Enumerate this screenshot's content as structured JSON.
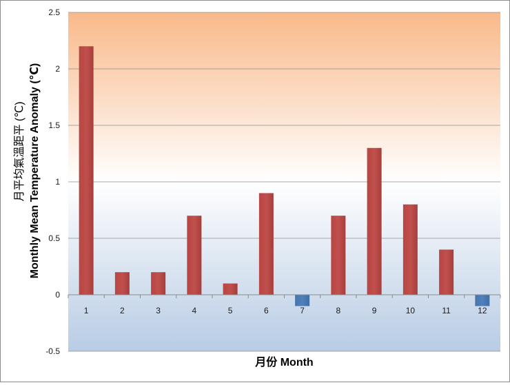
{
  "chart_data": {
    "type": "bar",
    "categories": [
      "1",
      "2",
      "3",
      "4",
      "5",
      "6",
      "7",
      "8",
      "9",
      "10",
      "11",
      "12"
    ],
    "values": [
      2.2,
      0.2,
      0.2,
      0.7,
      0.1,
      0.9,
      -0.1,
      0.7,
      1.3,
      0.8,
      0.4,
      -0.1
    ],
    "ylim": [
      -0.5,
      2.5
    ],
    "yticks": [
      "-0.5",
      "0",
      "0.5",
      "1",
      "1.5",
      "2",
      "2.5"
    ],
    "xlabel": "月份 Month",
    "ylabel_zh": "月平均氣溫距平 (℃)",
    "ylabel_en": "Monthly Mean Temperature Anomaly (℃)",
    "grid": true,
    "colors": {
      "positive": "#c0504d",
      "negative": "#4f81bd",
      "background_top": "#f9b98a",
      "background_mid": "#ffffff",
      "background_bottom": "#b8cce4"
    }
  }
}
